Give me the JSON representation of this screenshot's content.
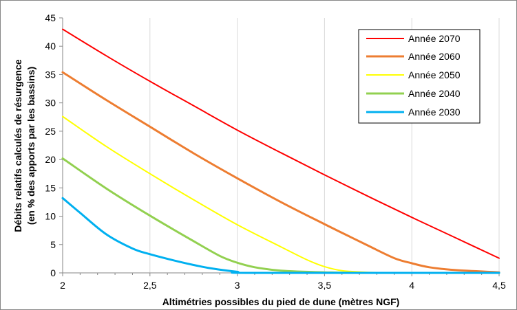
{
  "chart_data": {
    "type": "line",
    "title": "",
    "xlabel": "Altimétries possibles du pied de dune (mètres NGF)",
    "ylabel_line1": "Débits relatifs calculés de résurgence",
    "ylabel_line2": "(en % des apports par les bassins)",
    "xlim": [
      2,
      4.5
    ],
    "ylim": [
      0,
      45
    ],
    "x_ticks": [
      {
        "value": 2,
        "label": "2"
      },
      {
        "value": 2.5,
        "label": "2,5"
      },
      {
        "value": 3,
        "label": "3"
      },
      {
        "value": 3.5,
        "label": "3,5"
      },
      {
        "value": 4,
        "label": "4"
      },
      {
        "value": 4.5,
        "label": "4,5"
      }
    ],
    "y_ticks": [
      {
        "value": 0,
        "label": "0"
      },
      {
        "value": 5,
        "label": "5"
      },
      {
        "value": 10,
        "label": "10"
      },
      {
        "value": 15,
        "label": "15"
      },
      {
        "value": 20,
        "label": "20"
      },
      {
        "value": 25,
        "label": "25"
      },
      {
        "value": 30,
        "label": "30"
      },
      {
        "value": 35,
        "label": "35"
      },
      {
        "value": 40,
        "label": "40"
      },
      {
        "value": 45,
        "label": "45"
      }
    ],
    "grid": "vertical",
    "legend_position": "top-right",
    "series": [
      {
        "name": "Année 2070",
        "color": "#ff0000",
        "points": [
          [
            2,
            43
          ],
          [
            2.25,
            38.3
          ],
          [
            2.5,
            33.8
          ],
          [
            2.75,
            29.5
          ],
          [
            3,
            25.2
          ],
          [
            3.25,
            21.2
          ],
          [
            3.5,
            17.3
          ],
          [
            3.75,
            13.5
          ],
          [
            4,
            9.8
          ],
          [
            4.25,
            6.2
          ],
          [
            4.5,
            2.6
          ]
        ]
      },
      {
        "name": "Année 2060",
        "color": "#ed7d31",
        "points": [
          [
            2,
            35.4
          ],
          [
            2.25,
            30.5
          ],
          [
            2.5,
            25.8
          ],
          [
            2.75,
            21.1
          ],
          [
            3,
            16.7
          ],
          [
            3.25,
            12.5
          ],
          [
            3.5,
            8.6
          ],
          [
            3.75,
            4.8
          ],
          [
            3.9,
            2.6
          ],
          [
            4,
            1.7
          ],
          [
            4.1,
            1.0
          ],
          [
            4.25,
            0.5
          ],
          [
            4.5,
            0.1
          ]
        ]
      },
      {
        "name": "Année 2050",
        "color": "#ffff00",
        "points": [
          [
            2,
            27.6
          ],
          [
            2.25,
            22.3
          ],
          [
            2.5,
            17.5
          ],
          [
            2.75,
            12.9
          ],
          [
            3,
            8.5
          ],
          [
            3.25,
            4.6
          ],
          [
            3.4,
            2.3
          ],
          [
            3.5,
            1.1
          ],
          [
            3.6,
            0.4
          ],
          [
            3.75,
            0.1
          ],
          [
            4,
            0
          ],
          [
            4.5,
            0
          ]
        ]
      },
      {
        "name": "Année 2040",
        "color": "#92d050",
        "points": [
          [
            2,
            20.2
          ],
          [
            2.25,
            14.9
          ],
          [
            2.5,
            10.1
          ],
          [
            2.75,
            5.6
          ],
          [
            2.9,
            3.0
          ],
          [
            3,
            1.8
          ],
          [
            3.1,
            1.0
          ],
          [
            3.25,
            0.4
          ],
          [
            3.5,
            0.1
          ],
          [
            3.75,
            0
          ],
          [
            4.5,
            0
          ]
        ]
      },
      {
        "name": "Année 2030",
        "color": "#00b0f0",
        "points": [
          [
            2,
            13.2
          ],
          [
            2.1,
            10.6
          ],
          [
            2.25,
            6.8
          ],
          [
            2.4,
            4.3
          ],
          [
            2.5,
            3.3
          ],
          [
            2.65,
            2.1
          ],
          [
            2.75,
            1.4
          ],
          [
            2.85,
            0.8
          ],
          [
            3,
            0.2
          ],
          [
            3.1,
            0
          ],
          [
            4.5,
            0
          ]
        ]
      }
    ]
  }
}
